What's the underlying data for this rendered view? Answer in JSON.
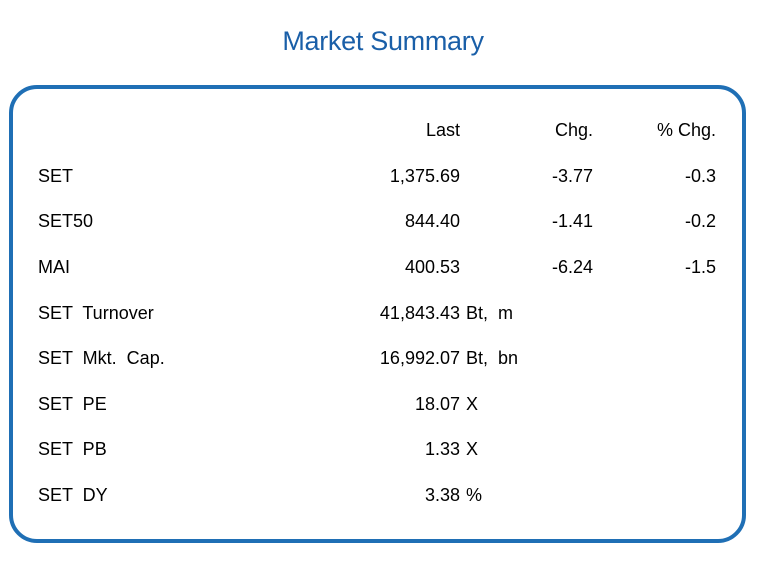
{
  "title": "Market Summary",
  "headers": {
    "last": "Last",
    "chg": "Chg.",
    "pct_chg": "% Chg."
  },
  "indices": [
    {
      "name": "SET",
      "last": "1,375.69",
      "chg": "-3.77",
      "pct_chg": "-0.3"
    },
    {
      "name": "SET50",
      "last": "844.40",
      "chg": "-1.41",
      "pct_chg": "-0.2"
    },
    {
      "name": "MAI",
      "last": "400.53",
      "chg": "-6.24",
      "pct_chg": "-1.5"
    }
  ],
  "stats": [
    {
      "name": "SET  Turnover",
      "value": "41,843.43",
      "unit": "Bt,  m"
    },
    {
      "name": "SET  Mkt.  Cap.",
      "value": "16,992.07",
      "unit": "Bt,  bn"
    },
    {
      "name": "SET  PE",
      "value": "18.07",
      "unit": "X"
    },
    {
      "name": "SET  PB",
      "value": "1.33",
      "unit": "X"
    },
    {
      "name": "SET  DY",
      "value": "3.38",
      "unit": "%"
    }
  ],
  "colors": {
    "title": "#1a5fa8",
    "border": "#1f6fb5"
  }
}
